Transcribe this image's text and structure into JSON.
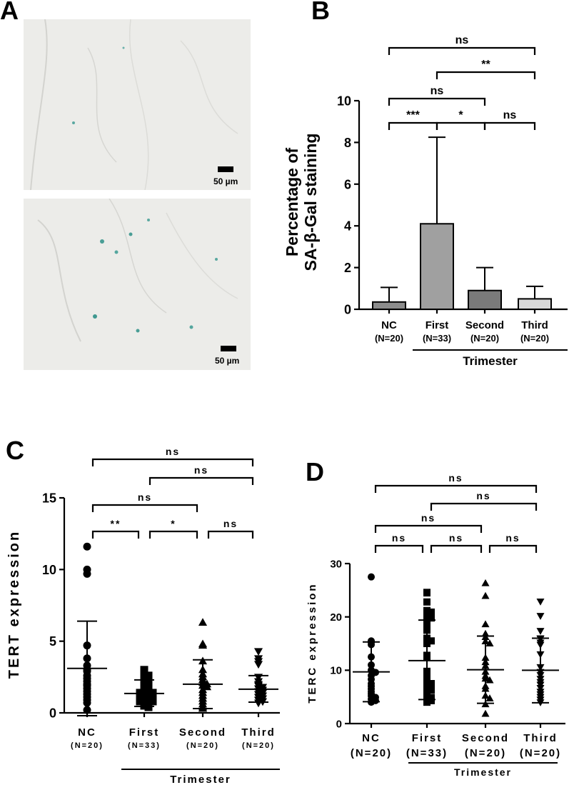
{
  "panels": {
    "a": {
      "letter": "A",
      "scale_label_top": "50 µm",
      "scale_label_bottom": "50 µm"
    },
    "b": {
      "letter": "B"
    },
    "c": {
      "letter": "C"
    },
    "d": {
      "letter": "D"
    }
  },
  "chart_data": [
    {
      "type": "bar",
      "panel": "B",
      "ylabel": "Percentage of\nSA-β-Gal staining",
      "xlabel": "Trimester",
      "ylim": [
        0,
        10
      ],
      "yticks": [
        0,
        2,
        4,
        6,
        8,
        10
      ],
      "categories": [
        "NC",
        "First",
        "Second",
        "Third"
      ],
      "group_n": [
        "(N=20)",
        "(N=33)",
        "(N=20)",
        "(N=20)"
      ],
      "values": [
        0.35,
        4.1,
        0.9,
        0.5
      ],
      "error_upper": [
        1.05,
        8.25,
        2.0,
        1.1
      ],
      "bar_colors": [
        "#8c8c8c",
        "#a0a0a0",
        "#7a7a7a",
        "#d9d9d9"
      ],
      "significance": [
        {
          "from": 0,
          "to": 3,
          "label": "ns"
        },
        {
          "from": 1,
          "to": 3,
          "label": "**"
        },
        {
          "from": 0,
          "to": 2,
          "label": "ns"
        },
        {
          "from": 0,
          "to": 1,
          "label": "***"
        },
        {
          "from": 1,
          "to": 2,
          "label": "*"
        },
        {
          "from": 2,
          "to": 3,
          "label": "ns"
        }
      ]
    },
    {
      "type": "scatter",
      "panel": "C",
      "ylabel": "TERT expression",
      "xlabel": "Trimester",
      "ylim": [
        0,
        15
      ],
      "yticks": [
        0,
        5,
        10,
        15
      ],
      "categories": [
        "NC",
        "First",
        "Second",
        "Third"
      ],
      "group_n": [
        "(N=20)",
        "(N=33)",
        "(N=20)",
        "(N=20)"
      ],
      "markers": [
        "circle",
        "square",
        "triangle-up",
        "triangle-down"
      ],
      "means": [
        3.1,
        1.35,
        2.0,
        1.65
      ],
      "sd_low": [
        -0.2,
        0.45,
        0.3,
        0.75
      ],
      "sd_high": [
        6.4,
        2.3,
        3.7,
        2.6
      ],
      "points": [
        [
          11.6,
          10.0,
          9.7,
          4.7,
          3.8,
          3.3,
          3.0,
          2.9,
          2.6,
          2.4,
          2.2,
          2.0,
          1.9,
          1.7,
          1.5,
          1.3,
          1.1,
          0.9,
          0.7,
          0.2
        ],
        [
          3.0,
          2.9,
          2.7,
          2.6,
          2.5,
          2.4,
          2.2,
          2.1,
          2.0,
          1.9,
          1.8,
          1.7,
          1.6,
          1.5,
          1.5,
          1.4,
          1.4,
          1.3,
          1.3,
          1.2,
          1.2,
          1.1,
          1.1,
          1.0,
          1.0,
          0.9,
          0.9,
          0.8,
          0.8,
          0.7,
          0.6,
          0.5,
          0.4
        ],
        [
          6.3,
          4.8,
          4.7,
          3.6,
          3.0,
          2.7,
          2.5,
          2.3,
          2.1,
          2.0,
          1.9,
          1.8,
          1.6,
          1.4,
          1.2,
          1.0,
          0.8,
          0.6,
          0.4,
          0.3
        ],
        [
          4.3,
          3.8,
          3.6,
          3.4,
          2.5,
          2.2,
          2.0,
          1.9,
          1.8,
          1.7,
          1.6,
          1.5,
          1.4,
          1.3,
          1.2,
          1.1,
          1.0,
          0.9,
          0.8,
          0.7
        ]
      ],
      "significance": [
        {
          "from": 0,
          "to": 3,
          "label": "ns"
        },
        {
          "from": 1,
          "to": 3,
          "label": "ns"
        },
        {
          "from": 0,
          "to": 2,
          "label": "ns"
        },
        {
          "from": 0,
          "to": 1,
          "label": "**"
        },
        {
          "from": 1,
          "to": 2,
          "label": "*"
        },
        {
          "from": 2,
          "to": 3,
          "label": "ns"
        }
      ]
    },
    {
      "type": "scatter",
      "panel": "D",
      "ylabel": "TERC expression",
      "xlabel": "Trimester",
      "ylim": [
        0,
        30
      ],
      "yticks": [
        0,
        10,
        20,
        30
      ],
      "categories": [
        "NC",
        "First",
        "Second",
        "Third"
      ],
      "group_n": [
        "(N=20)",
        "(N=33)",
        "(N=20)",
        "(N=20)"
      ],
      "markers": [
        "circle",
        "square",
        "triangle-up",
        "triangle-down"
      ],
      "means": [
        9.7,
        11.8,
        10.1,
        10.0
      ],
      "sd_low": [
        4.1,
        4.5,
        3.8,
        3.9
      ],
      "sd_high": [
        15.3,
        19.4,
        16.4,
        16.0
      ],
      "points": [
        [
          27.5,
          15.5,
          15.2,
          14.8,
          12.5,
          11.0,
          10.0,
          9.6,
          9.0,
          8.3,
          7.5,
          7.0,
          6.5,
          6.0,
          5.6,
          5.2,
          4.9,
          4.6,
          4.3,
          4.0
        ],
        [
          24.6,
          24.5,
          22.8,
          21.2,
          20.9,
          20.3,
          20.0,
          19.8,
          19.2,
          18.8,
          17.5,
          16.0,
          15.8,
          15.5,
          15.0,
          12.8,
          12.4,
          9.8,
          9.3,
          8.7,
          8.3,
          7.9,
          7.5,
          7.1,
          6.7,
          6.3,
          5.9,
          5.5,
          5.2,
          4.9,
          4.6,
          4.3,
          4.0
        ],
        [
          26.3,
          23.9,
          18.6,
          16.8,
          16.2,
          15.4,
          15.0,
          12.3,
          11.5,
          10.8,
          9.7,
          8.9,
          8.4,
          8.1,
          7.0,
          6.5,
          5.2,
          4.7,
          3.6,
          1.8
        ],
        [
          22.9,
          20.2,
          17.4,
          16.0,
          15.9,
          15.2,
          14.8,
          13.0,
          10.6,
          9.7,
          9.1,
          8.4,
          7.8,
          7.3,
          6.7,
          6.0,
          5.5,
          5.0,
          4.5,
          4.0
        ]
      ],
      "significance": [
        {
          "from": 0,
          "to": 3,
          "label": "ns"
        },
        {
          "from": 1,
          "to": 3,
          "label": "ns"
        },
        {
          "from": 0,
          "to": 2,
          "label": "ns"
        },
        {
          "from": 0,
          "to": 1,
          "label": "ns"
        },
        {
          "from": 1,
          "to": 2,
          "label": "ns"
        },
        {
          "from": 2,
          "to": 3,
          "label": "ns"
        }
      ]
    }
  ]
}
